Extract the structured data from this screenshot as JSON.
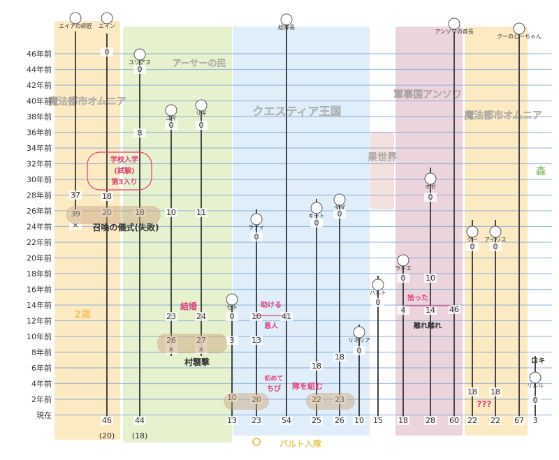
{
  "axis": {
    "labels": [
      "46年前",
      "44年前",
      "42年前",
      "40年前",
      "38年前",
      "36年前",
      "34年前",
      "32年前",
      "30年前",
      "28年前",
      "26年前",
      "24年前",
      "22年前",
      "20年前",
      "18年前",
      "16年前",
      "14年前",
      "12年前",
      "10年前",
      "8年前",
      "6年前",
      "4年前",
      "2年前",
      "現在"
    ]
  },
  "regions": [
    {
      "label": "魔法都市オムニア",
      "color": "#fbe6b8"
    },
    {
      "label": "アーサーの民",
      "color": "#e2efc6"
    },
    {
      "label": "クエスティア王国",
      "color": "#d9ebf7"
    },
    {
      "label": "果世界",
      "color": "#f2dcd8"
    },
    {
      "label": "軍事国アンソワ",
      "color": "#e7cdd6"
    },
    {
      "label": "魔法都市オムニア",
      "color": "#fbe6b8"
    },
    {
      "label": "森",
      "color": "#8fbf6a"
    }
  ],
  "characters": [
    {
      "name": "エイアの師匠",
      "values": [
        "37",
        "39",
        "×"
      ]
    },
    {
      "name": "エイン",
      "values": [
        "0",
        "18",
        "20",
        "46"
      ],
      "note": "(20)"
    },
    {
      "name": "ユリアス",
      "values": [
        "0",
        "8",
        "18",
        "44"
      ],
      "note": "(18)"
    },
    {
      "name": "ユイ",
      "values": [
        "0",
        "10",
        "23",
        "26",
        "×"
      ]
    },
    {
      "name": "リギ",
      "values": [
        "0",
        "11",
        "24",
        "27",
        "×"
      ]
    },
    {
      "name": "セト",
      "values": [
        "0",
        "3",
        "10",
        "13"
      ]
    },
    {
      "name": "ラディ",
      "values": [
        "0",
        "10",
        "13",
        "20",
        "23"
      ]
    },
    {
      "name": "総隊長",
      "values": [
        "41",
        "54"
      ]
    },
    {
      "name": "キート",
      "values": [
        "0",
        "18",
        "22",
        "25"
      ]
    },
    {
      "name": "ダダ",
      "values": [
        "0",
        "18",
        "23",
        "26"
      ]
    },
    {
      "name": "リネリア",
      "values": [
        "0",
        "10"
      ]
    },
    {
      "name": "ハルト",
      "values": [
        "0",
        "15"
      ]
    },
    {
      "name": "ラキエ",
      "values": [
        "0",
        "4",
        "18"
      ]
    },
    {
      "name": "オゼ",
      "values": [
        "0",
        "10",
        "14",
        "28"
      ]
    },
    {
      "name": "アンソワの首長",
      "values": [
        "46",
        "60"
      ]
    },
    {
      "name": "クー",
      "values": [
        "0",
        "18",
        "22"
      ]
    },
    {
      "name": "アイリス",
      "values": [
        "0",
        "18",
        "22"
      ]
    },
    {
      "name": "クーのじーちゃん",
      "values": [
        "67"
      ]
    },
    {
      "name": "リルル",
      "values": [
        "0",
        "3"
      ]
    }
  ],
  "annotations": {
    "school": "学校入学",
    "school2": "(試験)",
    "school3": "第3入り",
    "summon": "召喚の儀式(失敗)",
    "marriage": "結婚",
    "village": "村襲撃",
    "rescue": "助ける",
    "benefactor": "恩人",
    "rescue2": "ちび",
    "team": "隊を組む",
    "first": "初めて",
    "raise": "拾った",
    "separate": "離れ離れ",
    "ages": "2歳",
    "unknown": "???",
    "bottom_legend": "バルト入隊",
    "lilulu": "ロキ"
  }
}
